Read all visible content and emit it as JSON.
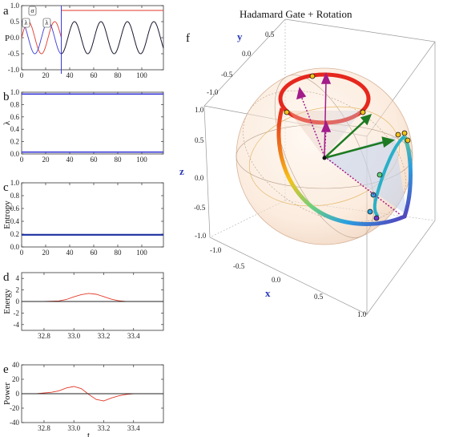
{
  "figure_title": "Hadamard Gate + Rotation",
  "panel_letters": [
    "a",
    "b",
    "c",
    "d",
    "e",
    "f"
  ],
  "colors": {
    "blue": "#3b3bd6",
    "red": "#e23a2a",
    "black": "#222222",
    "entropy": "#1c2fa0"
  },
  "chart_data": [
    {
      "panel": "a",
      "type": "line",
      "xlabel": "",
      "ylabel": "P",
      "xlim": [
        0,
        118
      ],
      "ylim": [
        -1.0,
        1.0
      ],
      "xticks": [
        0,
        20,
        40,
        60,
        80,
        100
      ],
      "yticks": [
        -1.0,
        -0.5,
        0.0,
        0.5,
        1.0
      ],
      "ytick_labels": [
        "-1.0",
        "-0.5",
        "0.0",
        "0.5",
        "1.0"
      ],
      "series": [
        {
          "color": "red",
          "kind": "sine",
          "amplitude": 0.5,
          "period": 22,
          "phase": 0,
          "x_end": 33
        },
        {
          "color": "red",
          "kind": "constant",
          "value": 0.85,
          "x_start": 33
        },
        {
          "color": "blue",
          "kind": "sine",
          "amplitude": 0.5,
          "period": 22,
          "phase": 0.5
        },
        {
          "color": "black",
          "kind": "sine",
          "amplitude": 0.5,
          "period": 22,
          "phase": 0.5,
          "x_start": 33
        }
      ],
      "vline": 33,
      "annotations": [
        "σ",
        "λ",
        "λ"
      ]
    },
    {
      "panel": "b",
      "type": "line",
      "xlabel": "",
      "ylabel": "λ",
      "xlim": [
        0,
        118
      ],
      "ylim": [
        0.0,
        1.0
      ],
      "xticks": [
        0,
        20,
        40,
        60,
        80,
        100
      ],
      "yticks": [
        0.0,
        0.2,
        0.4,
        0.6,
        0.8,
        1.0
      ],
      "ytick_labels": [
        "0.0",
        "0.2",
        "0.4",
        "0.6",
        "0.8",
        "1.0"
      ],
      "series": [
        {
          "color": "blue",
          "kind": "constant",
          "value": 0.97
        },
        {
          "color": "blue",
          "kind": "constant",
          "value": 0.03
        }
      ]
    },
    {
      "panel": "c",
      "type": "line",
      "xlabel": "",
      "ylabel": "Entropy",
      "xlim": [
        0,
        118
      ],
      "ylim": [
        0.0,
        1.0
      ],
      "xticks": [
        0,
        20,
        40,
        60,
        80,
        100
      ],
      "yticks": [
        0.0,
        0.2,
        0.4,
        0.6,
        0.8,
        1.0
      ],
      "ytick_labels": [
        "0.0",
        "0.2",
        "0.4",
        "0.6",
        "0.8",
        "1.0"
      ],
      "series": [
        {
          "color": "entropy",
          "kind": "constant",
          "value": 0.19
        }
      ]
    },
    {
      "panel": "d",
      "type": "line",
      "xlabel": "",
      "ylabel": "Energy",
      "xlim": [
        32.65,
        33.6
      ],
      "ylim": [
        -5,
        5
      ],
      "xticks": [
        32.8,
        33.0,
        33.2,
        33.4
      ],
      "xtick_labels": [
        "32.8",
        "33.0",
        "33.2",
        "33.4"
      ],
      "yticks": [
        -4,
        -2,
        0,
        2,
        4
      ],
      "ytick_labels": [
        "-4",
        "-2",
        "0",
        "2",
        "4"
      ],
      "series": [
        {
          "color": "red",
          "x": [
            32.65,
            32.8,
            32.9,
            32.95,
            33.0,
            33.05,
            33.1,
            33.15,
            33.2,
            33.25,
            33.3,
            33.35,
            33.4,
            33.5,
            33.6
          ],
          "y": [
            0,
            0,
            0.1,
            0.35,
            0.8,
            1.2,
            1.4,
            1.25,
            0.85,
            0.4,
            0.12,
            0.02,
            0,
            0,
            0
          ]
        },
        {
          "color": "black",
          "kind": "constant",
          "value": 0
        }
      ]
    },
    {
      "panel": "e",
      "type": "line",
      "xlabel": "t",
      "ylabel": "Power",
      "xlim": [
        32.65,
        33.6
      ],
      "ylim": [
        -40,
        40
      ],
      "xticks": [
        32.8,
        33.0,
        33.2,
        33.4
      ],
      "xtick_labels": [
        "32.8",
        "33.0",
        "33.2",
        "33.4"
      ],
      "yticks": [
        -40,
        -20,
        0,
        20,
        40
      ],
      "ytick_labels": [
        "-40",
        "-20",
        "0",
        "20",
        "40"
      ],
      "series": [
        {
          "color": "red",
          "x": [
            32.65,
            32.75,
            32.8,
            32.85,
            32.9,
            32.95,
            33.0,
            33.05,
            33.1,
            33.15,
            33.2,
            33.25,
            33.3,
            33.35,
            33.4,
            33.5,
            33.6
          ],
          "y": [
            0,
            0,
            1,
            2,
            4,
            8,
            10,
            7,
            -1,
            -8,
            -10,
            -6,
            -3,
            -1,
            0,
            0,
            0
          ]
        },
        {
          "color": "black",
          "kind": "constant",
          "value": 0
        }
      ]
    },
    {
      "panel": "f",
      "type": "scatter",
      "title": "Hadamard Gate + Rotation",
      "axis_names": [
        "x",
        "y",
        "z"
      ],
      "x_ticks": [
        "-1.0",
        "-0.5",
        "0.0",
        "0.5",
        "1.0"
      ],
      "y_ticks": [
        "-1.0",
        "-0.5",
        "0.0",
        "0.5"
      ],
      "z_ticks": [
        "-1.0",
        "-0.5",
        "0.0",
        "0.5",
        "1.0"
      ]
    }
  ]
}
